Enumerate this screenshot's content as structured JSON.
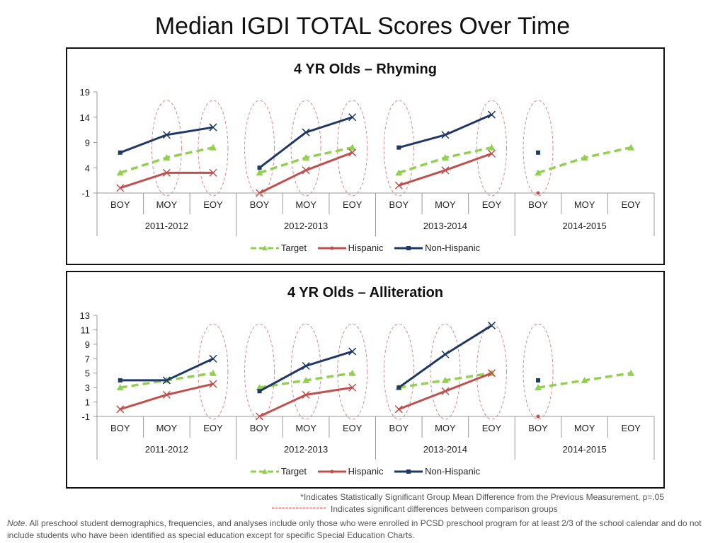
{
  "page_title": "Median IGDI TOTAL Scores Over Time",
  "footnotes": {
    "significance": "*Indicates Statistically Significant Group Mean Difference from the Previous Measurement, p=.05",
    "comparison": "Indicates significant differences between comparison groups",
    "note_label": "Note",
    "note_text": ". All preschool student demographics, frequencies, and analyses include only those who were enrolled in PCSD preschool program for at least 2/3 of the school calendar and do not include students who have been identified as special education except for specific Special Education Charts."
  },
  "colors": {
    "target": "#92d050",
    "hispanic": "#c0504d",
    "non_hispanic": "#1f3864",
    "circle": "#d9878f"
  },
  "chart_data": [
    {
      "type": "line",
      "title": "4 YR Olds – Rhyming",
      "ylim": [
        -1,
        19
      ],
      "yticks": [
        19,
        14,
        9,
        4,
        -1
      ],
      "categories": [
        "BOY",
        "MOY",
        "EOY",
        "BOY",
        "MOY",
        "EOY",
        "BOY",
        "MOY",
        "EOY",
        "BOY",
        "MOY",
        "EOY"
      ],
      "groups": [
        "2011-2012",
        "2012-2013",
        "2013-2014",
        "2014-2015"
      ],
      "series": [
        {
          "name": "Target",
          "values": [
            3,
            6,
            8,
            3,
            6,
            8,
            3,
            6,
            8,
            3,
            6,
            8
          ]
        },
        {
          "name": "Hispanic",
          "values": [
            0,
            3,
            3,
            -1,
            3.5,
            7,
            0.5,
            3.5,
            6.8,
            -1,
            null,
            null
          ]
        },
        {
          "name": "Non-Hispanic",
          "values": [
            7,
            10.5,
            12,
            4,
            11,
            14,
            8,
            10.5,
            14.5,
            7,
            null,
            null
          ]
        }
      ],
      "highlight_circles": [
        1,
        2,
        3,
        4,
        5,
        6,
        8,
        9
      ]
    },
    {
      "type": "line",
      "title": "4 YR Olds – Alliteration",
      "ylim": [
        -1,
        13
      ],
      "yticks": [
        13,
        11,
        9,
        7,
        5,
        3,
        1,
        -1
      ],
      "categories": [
        "BOY",
        "MOY",
        "EOY",
        "BOY",
        "MOY",
        "EOY",
        "BOY",
        "MOY",
        "EOY",
        "BOY",
        "MOY",
        "EOY"
      ],
      "groups": [
        "2011-2012",
        "2012-2013",
        "2013-2014",
        "2014-2015"
      ],
      "series": [
        {
          "name": "Target",
          "values": [
            3,
            4,
            5,
            3,
            4,
            5,
            3,
            4,
            5,
            3,
            4,
            5
          ]
        },
        {
          "name": "Hispanic",
          "values": [
            0,
            2,
            3.5,
            -1,
            2,
            3,
            0,
            2.5,
            5,
            -1,
            null,
            null
          ]
        },
        {
          "name": "Non-Hispanic",
          "values": [
            4,
            4,
            7,
            2.5,
            6,
            8,
            3,
            7.6,
            11.6,
            4,
            null,
            null
          ]
        }
      ],
      "highlight_circles": [
        2,
        3,
        4,
        5,
        6,
        7,
        8,
        9
      ]
    }
  ]
}
